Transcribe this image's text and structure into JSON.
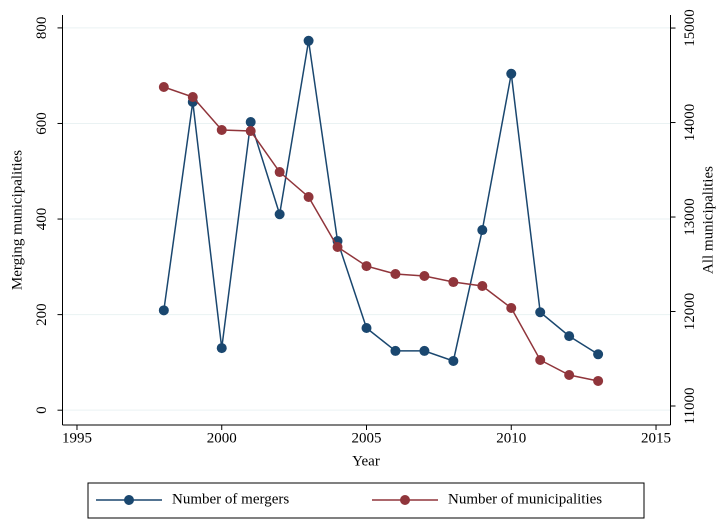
{
  "chart_data": {
    "type": "line",
    "x_label": "Year",
    "y_label": "Merging municipalities",
    "y2_label": "All municipalities",
    "x": [
      1998,
      1999,
      2000,
      2001,
      2002,
      2003,
      2004,
      2005,
      2006,
      2007,
      2008,
      2009,
      2010,
      2011,
      2012,
      2013
    ],
    "series": [
      {
        "name": "Number of mergers",
        "color": "#1a476f",
        "values": [
          209,
          645,
          130,
          603,
          410,
          773,
          354,
          172,
          124,
          124,
          103,
          377,
          704,
          205,
          155,
          117
        ]
      },
      {
        "name": "Number of municipalities",
        "color": "#90353b",
        "axis": "y2",
        "values": [
          14376,
          14270,
          13921,
          13910,
          13476,
          13212,
          12683,
          12481,
          12397,
          12376,
          12312,
          12270,
          12037,
          11487,
          11328,
          11265
        ]
      }
    ],
    "xlim": [
      1994.5,
      2015.5
    ],
    "xticks": [
      1995,
      2000,
      2005,
      2010,
      2015
    ],
    "ylim": [
      -31,
      827
    ],
    "yticks": [
      0,
      200,
      400,
      600,
      800
    ],
    "y2lim": [
      10799,
      15138
    ],
    "y2ticks": [
      11000,
      12000,
      13000,
      14000,
      15000
    ],
    "grid": true,
    "legend": "bottom"
  }
}
